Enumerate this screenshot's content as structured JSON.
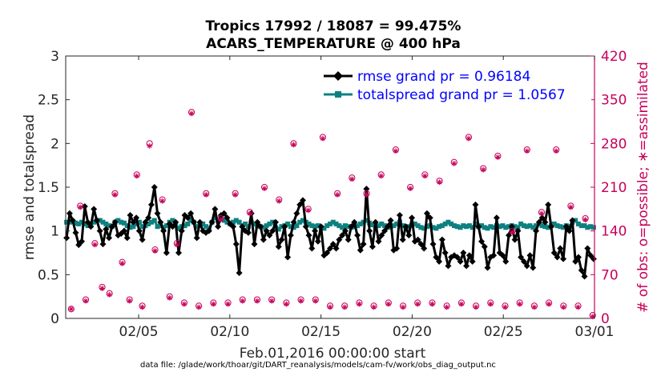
{
  "chart_data": {
    "type": "line",
    "title": [
      "Tropics 17992 / 18087 = 99.475%",
      "ACARS_TEMPERATURE @ 400 hPa"
    ],
    "ylabel": "rmse and totalspread",
    "ylabel_right": "# of obs: o=possible; ∗=assimilated",
    "xlabel": "Feb.01,2016 00:00:00 start",
    "footer": "data file: /glade/work/thoar/git/DART_reanalysis/models/cam-fv/work/obs_diag_output.nc",
    "xlim": [
      1,
      30
    ],
    "ylim": [
      0,
      3
    ],
    "ylim_right": [
      0,
      420
    ],
    "xticks": [
      {
        "value": 5,
        "label": "02/05"
      },
      {
        "value": 10,
        "label": "02/10"
      },
      {
        "value": 15,
        "label": "02/15"
      },
      {
        "value": 20,
        "label": "02/20"
      },
      {
        "value": 25,
        "label": "02/25"
      },
      {
        "value": 30,
        "label": "03/01"
      }
    ],
    "yticks": [
      "0",
      "0.5",
      "1",
      "1.5",
      "2",
      "2.5",
      "3"
    ],
    "yticks_right": [
      "0",
      "70",
      "140",
      "210",
      "280",
      "350",
      "420"
    ],
    "legend": [
      {
        "label": "rmse grand pr = 0.96184",
        "color": "#000000",
        "marker": "diamond"
      },
      {
        "label": "totalspread grand pr = 1.0567",
        "color": "#0f8080",
        "marker": "square"
      }
    ],
    "series": [
      {
        "name": "rmse",
        "color": "#000000",
        "axis": "left",
        "values": [
          0.92,
          1.2,
          1.12,
          0.98,
          0.84,
          0.88,
          1.28,
          1.1,
          1.05,
          1.25,
          1.12,
          1.0,
          0.85,
          1.02,
          0.92,
          1.05,
          1.1,
          0.95,
          0.97,
          1.0,
          0.92,
          1.18,
          1.1,
          1.15,
          1.0,
          0.9,
          1.1,
          1.15,
          1.3,
          1.5,
          1.2,
          1.1,
          1.0,
          0.75,
          1.08,
          1.05,
          1.1,
          0.75,
          1.0,
          1.18,
          1.15,
          1.2,
          1.1,
          0.92,
          1.1,
          1.0,
          0.98,
          1.0,
          1.1,
          1.25,
          1.05,
          1.18,
          1.2,
          1.15,
          1.08,
          1.05,
          0.85,
          0.52,
          1.05,
          1.0,
          0.98,
          1.2,
          0.85,
          1.1,
          1.05,
          0.9,
          1.0,
          0.95,
          1.0,
          1.1,
          0.82,
          0.9,
          1.05,
          0.7,
          0.95,
          1.1,
          1.2,
          1.3,
          1.35,
          1.05,
          0.95,
          0.8,
          1.0,
          0.88,
          1.05,
          0.72,
          0.75,
          0.8,
          0.85,
          0.8,
          0.9,
          0.95,
          1.0,
          0.9,
          1.05,
          1.1,
          0.95,
          0.78,
          0.85,
          1.48,
          1.0,
          0.82,
          1.1,
          0.88,
          0.95,
          1.0,
          1.05,
          1.12,
          0.78,
          0.8,
          1.18,
          0.9,
          1.05,
          0.95,
          1.15,
          0.88,
          0.9,
          0.85,
          0.8,
          1.2,
          1.15,
          0.85,
          0.7,
          0.65,
          0.9,
          0.75,
          0.6,
          0.7,
          0.72,
          0.7,
          0.65,
          0.75,
          0.6,
          0.72,
          0.65,
          1.3,
          1.05,
          0.88,
          0.82,
          0.58,
          0.7,
          0.72,
          1.15,
          0.75,
          0.72,
          0.65,
          0.95,
          1.05,
          0.9,
          1.0,
          0.7,
          0.65,
          0.6,
          0.72,
          0.58,
          1.0,
          1.1,
          1.15,
          1.1,
          1.3,
          1.05,
          0.75,
          0.7,
          0.8,
          0.68,
          1.05,
          1.0,
          1.12,
          0.65,
          0.7,
          0.55,
          0.48,
          0.8,
          0.72,
          0.68
        ]
      },
      {
        "name": "totalspread",
        "color": "#0f8080",
        "axis": "left",
        "values": [
          1.1,
          1.1,
          1.11,
          1.09,
          1.08,
          1.1,
          1.08,
          1.06,
          1.08,
          1.1,
          1.12,
          1.12,
          1.1,
          1.08,
          1.06,
          1.05,
          1.1,
          1.12,
          1.1,
          1.09,
          1.06,
          1.04,
          1.05,
          1.08,
          1.1,
          1.05,
          1.06,
          1.08,
          1.1,
          1.12,
          1.05,
          1.06,
          1.04,
          1.06,
          1.1,
          1.12,
          1.08,
          1.03,
          1.05,
          1.06,
          1.08,
          1.12,
          1.1,
          1.05,
          1.06,
          1.08,
          1.05,
          1.03,
          1.1,
          1.15,
          1.12,
          1.14,
          1.12,
          1.1,
          1.08,
          1.1,
          1.12,
          1.1,
          1.06,
          1.08,
          1.05,
          1.1,
          1.08,
          1.06,
          1.05,
          1.04,
          1.06,
          1.08,
          1.1,
          1.04,
          1.02,
          1.05,
          1.06,
          1.08,
          1.05,
          1.04,
          1.06,
          1.1,
          1.12,
          1.1,
          1.08,
          1.06,
          1.05,
          1.06,
          1.04,
          1.03,
          1.06,
          1.08,
          1.1,
          1.08,
          1.06,
          1.04,
          1.06,
          1.05,
          1.04,
          1.05,
          1.06,
          1.08,
          1.1,
          1.12,
          1.09,
          1.07,
          1.05,
          1.06,
          1.08,
          1.06,
          1.04,
          1.05,
          1.06,
          1.08,
          1.1,
          1.06,
          1.04,
          1.05,
          1.06,
          1.08,
          1.06,
          1.04,
          1.03,
          1.05,
          1.06,
          1.04,
          1.03,
          1.05,
          1.06,
          1.08,
          1.1,
          1.08,
          1.06,
          1.05,
          1.04,
          1.06,
          1.05,
          1.06,
          1.04,
          1.08,
          1.05,
          1.06,
          1.04,
          1.03,
          1.05,
          1.04,
          1.06,
          1.05,
          1.06,
          1.04,
          1.05,
          1.06,
          1.05,
          1.04,
          1.08,
          1.06,
          1.05,
          1.06,
          1.04,
          1.06,
          1.08,
          1.06,
          1.05,
          1.04,
          1.06,
          1.08,
          1.06,
          1.05,
          1.04,
          1.06,
          1.05,
          1.1,
          1.12,
          1.08,
          1.06,
          1.06,
          1.04,
          1.05,
          1.04
        ]
      },
      {
        "name": "obs possible",
        "color": "#c8005a",
        "axis": "right",
        "marker": "o",
        "x": [
          1.3,
          1.8,
          2.1,
          2.6,
          3.0,
          3.4,
          3.7,
          4.1,
          4.5,
          4.9,
          5.2,
          5.6,
          5.9,
          6.3,
          6.7,
          7.1,
          7.5,
          7.9,
          8.3,
          8.7,
          9.1,
          9.5,
          9.9,
          10.3,
          10.7,
          11.1,
          11.5,
          11.9,
          12.3,
          12.7,
          13.1,
          13.5,
          13.9,
          14.3,
          14.7,
          15.1,
          15.5,
          15.9,
          16.3,
          16.7,
          17.1,
          17.5,
          17.9,
          18.3,
          18.7,
          19.1,
          19.5,
          19.9,
          20.3,
          20.7,
          21.1,
          21.5,
          21.9,
          22.3,
          22.7,
          23.1,
          23.5,
          23.9,
          24.3,
          24.7,
          25.1,
          25.5,
          25.9,
          26.3,
          26.7,
          27.1,
          27.5,
          27.9,
          28.3,
          28.7,
          29.1,
          29.5,
          29.9
        ],
        "values": [
          15,
          180,
          30,
          120,
          50,
          40,
          200,
          90,
          30,
          230,
          20,
          280,
          110,
          190,
          35,
          120,
          25,
          330,
          20,
          200,
          25,
          160,
          25,
          200,
          30,
          170,
          30,
          210,
          30,
          190,
          25,
          280,
          30,
          175,
          30,
          290,
          20,
          200,
          20,
          225,
          25,
          200,
          20,
          230,
          25,
          270,
          20,
          210,
          25,
          230,
          25,
          220,
          20,
          250,
          25,
          290,
          20,
          240,
          25,
          260,
          20,
          140,
          25,
          270,
          20,
          170,
          25,
          270,
          20,
          180,
          20,
          160,
          5
        ]
      },
      {
        "name": "obs assimilated",
        "color": "#c8005a",
        "axis": "right",
        "marker": "*",
        "x": [
          1.3,
          1.8,
          2.1,
          2.6,
          3.0,
          3.4,
          3.7,
          4.1,
          4.5,
          4.9,
          5.2,
          5.6,
          5.9,
          6.3,
          6.7,
          7.1,
          7.5,
          7.9,
          8.3,
          8.7,
          9.1,
          9.5,
          9.9,
          10.3,
          10.7,
          11.1,
          11.5,
          11.9,
          12.3,
          12.7,
          13.1,
          13.5,
          13.9,
          14.3,
          14.7,
          15.1,
          15.5,
          15.9,
          16.3,
          16.7,
          17.1,
          17.5,
          17.9,
          18.3,
          18.7,
          19.1,
          19.5,
          19.9,
          20.3,
          20.7,
          21.1,
          21.5,
          21.9,
          22.3,
          22.7,
          23.1,
          23.5,
          23.9,
          24.3,
          24.7,
          25.1,
          25.5,
          25.9,
          26.3,
          26.7,
          27.1,
          27.5,
          27.9,
          28.3,
          28.7,
          29.1,
          29.5,
          29.9
        ],
        "values": [
          15,
          178,
          28,
          118,
          48,
          38,
          198,
          88,
          28,
          228,
          18,
          276,
          108,
          188,
          33,
          118,
          23,
          328,
          18,
          198,
          23,
          158,
          23,
          198,
          28,
          168,
          28,
          208,
          28,
          188,
          23,
          278,
          28,
          173,
          28,
          288,
          18,
          198,
          18,
          223,
          23,
          198,
          18,
          228,
          23,
          268,
          18,
          208,
          23,
          228,
          23,
          218,
          18,
          248,
          23,
          288,
          18,
          238,
          23,
          258,
          18,
          138,
          23,
          268,
          18,
          168,
          23,
          268,
          18,
          178,
          18,
          158,
          3
        ]
      }
    ]
  }
}
